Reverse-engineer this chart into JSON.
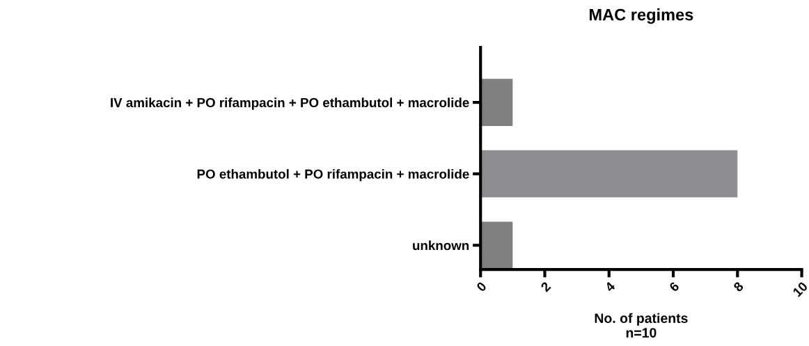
{
  "chart_data": {
    "type": "bar",
    "orientation": "horizontal",
    "title": "MAC regimes",
    "xlabel": "No. of patients\nn=10",
    "categories": [
      "IV amikacin + PO rifampacin + PO ethambutol + macrolide",
      "PO ethambutol + PO rifampacin + macrolide",
      "unknown"
    ],
    "values": [
      1,
      8,
      1
    ],
    "colors": [
      "#7f7f7f",
      "#8c8d91",
      "#7f7f7f"
    ],
    "xlim": [
      0,
      10
    ],
    "xticks": [
      0,
      2,
      4,
      6,
      8,
      10
    ],
    "grid": false,
    "legend": false
  }
}
